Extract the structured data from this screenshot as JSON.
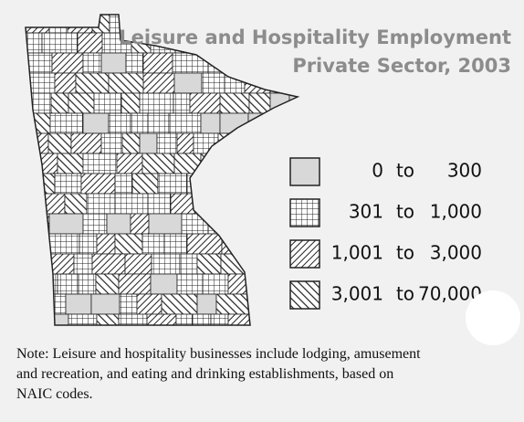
{
  "title": [
    "Leisure and Hospitality Employment",
    "Private Sector, 2003"
  ],
  "legend": [
    {
      "low": "0",
      "sep": "to",
      "high": "300"
    },
    {
      "low": "301",
      "sep": "to",
      "high": "1,000"
    },
    {
      "low": "1,001",
      "sep": "to",
      "high": "3,000"
    },
    {
      "low": "3,001",
      "sep": "to",
      "high": "70,000"
    }
  ],
  "note": [
    "Note: Leisure and hospitality businesses include lodging, amusement",
    "and recreation, and eating and drinking establishments, based on",
    "NAIC codes."
  ]
}
